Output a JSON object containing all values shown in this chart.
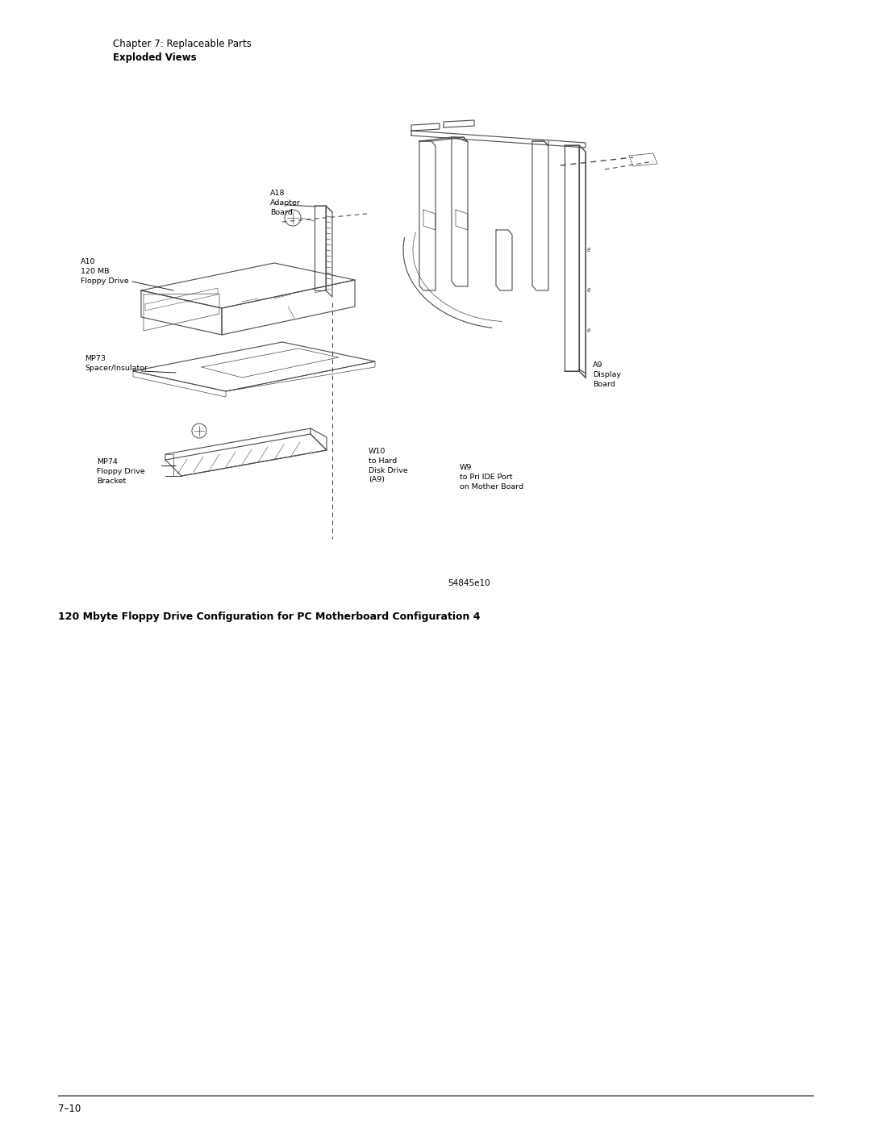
{
  "page_width": 10.8,
  "page_height": 13.97,
  "dpi": 100,
  "background_color": "#ffffff",
  "header_line1": "Chapter 7: Replaceable Parts",
  "header_line2": "Exploded Views",
  "caption": "120 Mbyte Floppy Drive Configuration for PC Motherboard Configuration 4",
  "figure_id": "54845e10",
  "page_number": "7–10",
  "text_color": "#000000",
  "line_color": "#4a4a4a",
  "label_A18": "A18\nAdapter\nBoard",
  "label_A10": "A10\n120 MB\nFloppy Drive",
  "label_MP73": "MP73\nSpacer/Insulator",
  "label_MP74": "MP74\nFloppy Drive\nBracket",
  "label_W10": "W10\nto Hard\nDisk Drive\n(A9)",
  "label_W9": "W9\nto Pri IDE Port\non Mother Board",
  "label_A9": "A9\nDisplay\nBoard"
}
